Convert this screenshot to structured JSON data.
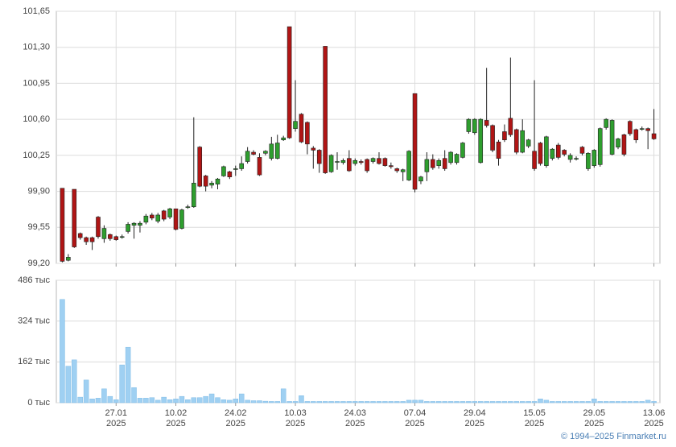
{
  "chart_data": [
    {
      "type": "candlestick",
      "up_color": "#2e9e2e",
      "down_color": "#b01515",
      "grid": true,
      "ylim": [
        99.2,
        101.65
      ],
      "yticks": [
        {
          "value": 99.2,
          "label": "99,20"
        },
        {
          "value": 99.55,
          "label": "99,55"
        },
        {
          "value": 99.9,
          "label": "99,90"
        },
        {
          "value": 100.25,
          "label": "100,25"
        },
        {
          "value": 100.6,
          "label": "100,60"
        },
        {
          "value": 100.95,
          "label": "100,95"
        },
        {
          "value": 101.3,
          "label": "101,30"
        },
        {
          "value": 101.65,
          "label": "101,65"
        }
      ],
      "open": [
        99.93,
        99.23,
        99.92,
        99.49,
        99.45,
        99.45,
        99.65,
        99.44,
        99.48,
        99.46,
        99.46,
        99.51,
        99.57,
        99.57,
        99.6,
        99.67,
        99.61,
        99.71,
        99.65,
        99.73,
        99.54,
        99.75,
        99.75,
        100.33,
        100.05,
        99.96,
        99.97,
        100.05,
        100.09,
        100.12,
        100.12,
        100.19,
        100.28,
        100.23,
        100.27,
        100.22,
        100.22,
        100.4,
        101.5,
        100.51,
        100.65,
        100.57,
        100.32,
        100.3,
        101.31,
        100.09,
        100.19,
        100.18,
        100.22,
        100.17,
        100.19,
        100.21,
        100.19,
        100.22,
        100.22,
        100.15,
        100.12,
        100.09,
        100.01,
        100.85,
        100.0,
        100.09,
        100.21,
        100.15,
        100.22,
        100.18,
        100.18,
        100.23,
        100.48,
        100.47,
        100.18,
        100.59,
        100.54,
        100.38,
        100.48,
        100.61,
        100.5,
        100.28,
        100.34,
        100.29,
        100.37,
        100.15,
        100.22,
        100.35,
        100.3,
        100.21,
        100.22,
        100.33,
        100.12,
        100.15,
        100.16,
        100.52,
        100.26,
        100.33,
        100.45,
        100.58,
        100.5,
        100.51,
        100.51,
        100.46
      ],
      "high": [
        99.93,
        99.29,
        99.92,
        99.5,
        99.46,
        99.46,
        99.66,
        99.57,
        99.49,
        99.47,
        99.48,
        99.6,
        99.6,
        99.61,
        99.68,
        99.69,
        99.69,
        99.72,
        99.74,
        99.73,
        99.73,
        99.77,
        100.62,
        100.34,
        100.06,
        100.0,
        100.03,
        100.15,
        100.1,
        100.15,
        100.24,
        100.33,
        100.3,
        100.27,
        100.3,
        100.43,
        100.45,
        100.44,
        101.5,
        100.98,
        100.66,
        100.58,
        100.34,
        100.31,
        101.31,
        100.26,
        100.28,
        100.22,
        100.3,
        100.22,
        100.21,
        100.22,
        100.23,
        100.28,
        100.23,
        100.18,
        100.13,
        100.12,
        100.3,
        100.85,
        100.05,
        100.28,
        100.26,
        100.22,
        100.3,
        100.29,
        100.27,
        100.38,
        100.61,
        100.61,
        100.61,
        101.1,
        100.55,
        100.4,
        100.55,
        101.2,
        100.51,
        100.6,
        100.41,
        100.98,
        100.38,
        100.44,
        100.32,
        100.37,
        100.31,
        100.27,
        100.24,
        100.34,
        100.28,
        100.31,
        100.52,
        100.61,
        100.6,
        100.42,
        100.46,
        100.59,
        100.51,
        100.53,
        100.52,
        100.7
      ],
      "low": [
        99.21,
        99.22,
        99.35,
        99.43,
        99.38,
        99.33,
        99.44,
        99.4,
        99.42,
        99.42,
        99.44,
        99.49,
        99.44,
        99.5,
        99.58,
        99.62,
        99.59,
        99.61,
        99.63,
        99.52,
        99.53,
        99.73,
        99.74,
        99.94,
        99.9,
        99.93,
        99.92,
        100.04,
        100.02,
        100.05,
        100.1,
        100.17,
        100.25,
        100.05,
        100.25,
        100.2,
        100.21,
        100.39,
        100.41,
        100.48,
        100.37,
        100.26,
        100.12,
        100.08,
        100.07,
        100.08,
        100.11,
        100.16,
        100.09,
        100.15,
        100.16,
        100.08,
        100.17,
        100.16,
        100.14,
        100.12,
        100.08,
        100.0,
        100.0,
        99.89,
        99.97,
        100.0,
        100.11,
        100.12,
        100.1,
        100.16,
        100.16,
        100.22,
        100.46,
        100.45,
        100.17,
        100.52,
        100.28,
        100.15,
        100.38,
        100.43,
        100.26,
        100.27,
        100.32,
        100.1,
        100.15,
        100.13,
        100.2,
        100.21,
        100.24,
        100.18,
        100.2,
        100.25,
        100.1,
        100.13,
        100.14,
        100.5,
        100.25,
        100.31,
        100.24,
        100.44,
        100.37,
        100.49,
        100.31,
        100.4
      ],
      "close": [
        99.22,
        99.26,
        99.36,
        99.45,
        99.41,
        99.41,
        99.46,
        99.54,
        99.44,
        99.43,
        99.46,
        99.58,
        99.59,
        99.59,
        99.66,
        99.64,
        99.67,
        99.63,
        99.73,
        99.53,
        99.72,
        99.75,
        99.98,
        99.95,
        99.95,
        99.98,
        100.02,
        100.14,
        100.04,
        100.12,
        100.17,
        100.29,
        100.26,
        100.06,
        100.29,
        100.36,
        100.37,
        100.42,
        100.42,
        100.58,
        100.38,
        100.36,
        100.3,
        100.17,
        100.08,
        100.25,
        100.19,
        100.2,
        100.1,
        100.2,
        100.18,
        100.1,
        100.22,
        100.17,
        100.15,
        100.14,
        100.1,
        100.11,
        100.29,
        99.92,
        100.04,
        100.21,
        100.13,
        100.2,
        100.12,
        100.28,
        100.26,
        100.37,
        100.6,
        100.6,
        100.6,
        100.54,
        100.3,
        100.22,
        100.4,
        100.45,
        100.28,
        100.49,
        100.4,
        100.12,
        100.17,
        100.43,
        100.31,
        100.23,
        100.26,
        100.25,
        100.22,
        100.27,
        100.27,
        100.3,
        100.51,
        100.6,
        100.59,
        100.41,
        100.26,
        100.46,
        100.4,
        100.51,
        100.49,
        100.41
      ]
    },
    {
      "type": "bar",
      "color": "#9fd0f2",
      "grid": true,
      "ylim": [
        0,
        486
      ],
      "yticks": [
        {
          "value": 0,
          "label": "0 тыс"
        },
        {
          "value": 162,
          "label": "162 тыс"
        },
        {
          "value": 324,
          "label": "324 тыс"
        },
        {
          "value": 486,
          "label": "486 тыс"
        }
      ],
      "values": [
        410,
        145,
        170,
        22,
        90,
        15,
        18,
        55,
        25,
        12,
        150,
        220,
        60,
        18,
        18,
        20,
        10,
        22,
        12,
        15,
        25,
        12,
        20,
        20,
        25,
        35,
        20,
        12,
        10,
        15,
        35,
        10,
        8,
        8,
        6,
        5,
        5,
        55,
        5,
        5,
        28,
        5,
        5,
        5,
        5,
        5,
        5,
        5,
        5,
        5,
        5,
        5,
        5,
        5,
        5,
        5,
        5,
        5,
        10,
        10,
        10,
        5,
        5,
        5,
        5,
        5,
        5,
        5,
        5,
        5,
        5,
        5,
        5,
        5,
        5,
        5,
        5,
        5,
        5,
        5,
        15,
        10,
        5,
        5,
        5,
        5,
        5,
        5,
        5,
        15,
        5,
        5,
        5,
        5,
        5,
        5,
        5,
        5,
        10,
        5
      ],
      "categories": [
        null,
        null,
        null,
        null,
        null,
        null,
        null,
        null,
        null,
        "27.01",
        null,
        null,
        null,
        null,
        null,
        null,
        null,
        null,
        null,
        "10.02",
        null,
        null,
        null,
        null,
        null,
        null,
        null,
        null,
        null,
        "24.02",
        null,
        null,
        null,
        null,
        null,
        null,
        null,
        null,
        null,
        "10.03",
        null,
        null,
        null,
        null,
        null,
        null,
        null,
        null,
        null,
        "24.03",
        null,
        null,
        null,
        null,
        null,
        null,
        null,
        null,
        null,
        "07.04",
        null,
        null,
        null,
        null,
        null,
        null,
        null,
        null,
        null,
        "29.04",
        null,
        null,
        null,
        null,
        null,
        null,
        null,
        null,
        null,
        "15.05",
        null,
        null,
        null,
        null,
        null,
        null,
        null,
        null,
        null,
        "29.05",
        null,
        null,
        null,
        null,
        null,
        null,
        null,
        null,
        null,
        "13.06"
      ],
      "x_year": "2025"
    }
  ],
  "footer": "© 1994–2025 Finmarket.ru"
}
